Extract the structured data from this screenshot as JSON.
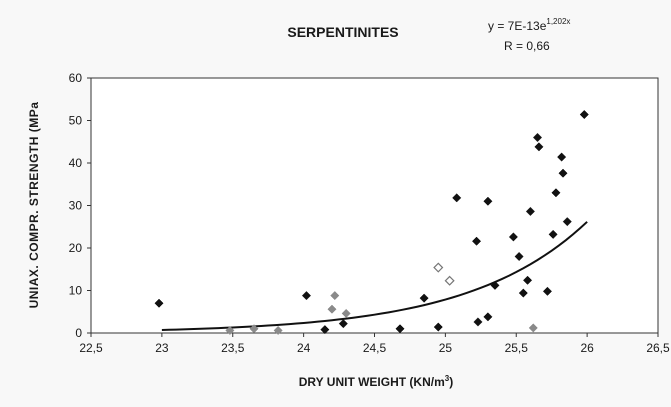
{
  "chart_data": {
    "type": "scatter",
    "title": "SERPENTINITES",
    "xlabel": "DRY UNIT WEIGHT (KN/m",
    "xlabel_sup": "3",
    "xlabel_end": ")",
    "ylabel": "UNIAX. COMPR. STRENGTH (MPa",
    "xlim": [
      22.5,
      26.5
    ],
    "ylim": [
      0,
      60
    ],
    "x_ticks": [
      22.5,
      23,
      23.5,
      24,
      24.5,
      25,
      25.5,
      26,
      26.5
    ],
    "x_tick_labels": [
      "22,5",
      "23",
      "23,5",
      "24",
      "24,5",
      "25",
      "25,5",
      "26",
      "26,5"
    ],
    "y_ticks": [
      0,
      10,
      20,
      30,
      40,
      50,
      60
    ],
    "y_tick_labels": [
      "0",
      "10",
      "20",
      "30",
      "40",
      "50",
      "60"
    ],
    "grid": false,
    "annotations": {
      "equation_prefix": "y = 7E-13e",
      "equation_exponent": "1,202x",
      "r_value": "R = 0,66"
    },
    "trendline": {
      "type": "exponential",
      "a": 7e-13,
      "b": 1.202,
      "x_range": [
        23,
        26
      ],
      "color": "#111111"
    },
    "series": [
      {
        "marker": "diamond",
        "color": "#111111",
        "points": [
          [
            22.98,
            7
          ],
          [
            24.02,
            8.8
          ],
          [
            24.15,
            0.8
          ],
          [
            24.28,
            2.2
          ],
          [
            24.68,
            1.0
          ],
          [
            24.85,
            8.2
          ],
          [
            24.95,
            1.4
          ],
          [
            25.08,
            31.8
          ],
          [
            25.22,
            21.6
          ],
          [
            25.23,
            2.6
          ],
          [
            25.3,
            3.8
          ],
          [
            25.3,
            31.0
          ],
          [
            25.35,
            11.2
          ],
          [
            25.48,
            22.6
          ],
          [
            25.52,
            18.0
          ],
          [
            25.55,
            9.4
          ],
          [
            25.58,
            12.4
          ],
          [
            25.6,
            28.6
          ],
          [
            25.65,
            46.0
          ],
          [
            25.66,
            43.8
          ],
          [
            25.72,
            9.8
          ],
          [
            25.76,
            23.2
          ],
          [
            25.78,
            33.0
          ],
          [
            25.82,
            41.4
          ],
          [
            25.83,
            37.6
          ],
          [
            25.86,
            26.2
          ],
          [
            25.98,
            51.4
          ]
        ]
      },
      {
        "marker": "diamond",
        "color": "#8a8a8a",
        "points": [
          [
            23.48,
            0.6
          ],
          [
            23.65,
            1.0
          ],
          [
            23.82,
            0.6
          ],
          [
            24.2,
            5.6
          ],
          [
            24.22,
            8.8
          ],
          [
            24.3,
            4.6
          ],
          [
            25.62,
            1.2
          ]
        ]
      },
      {
        "marker": "diamond-open",
        "color": "#777777",
        "points": [
          [
            24.95,
            15.4
          ],
          [
            25.03,
            12.3
          ]
        ]
      }
    ]
  }
}
